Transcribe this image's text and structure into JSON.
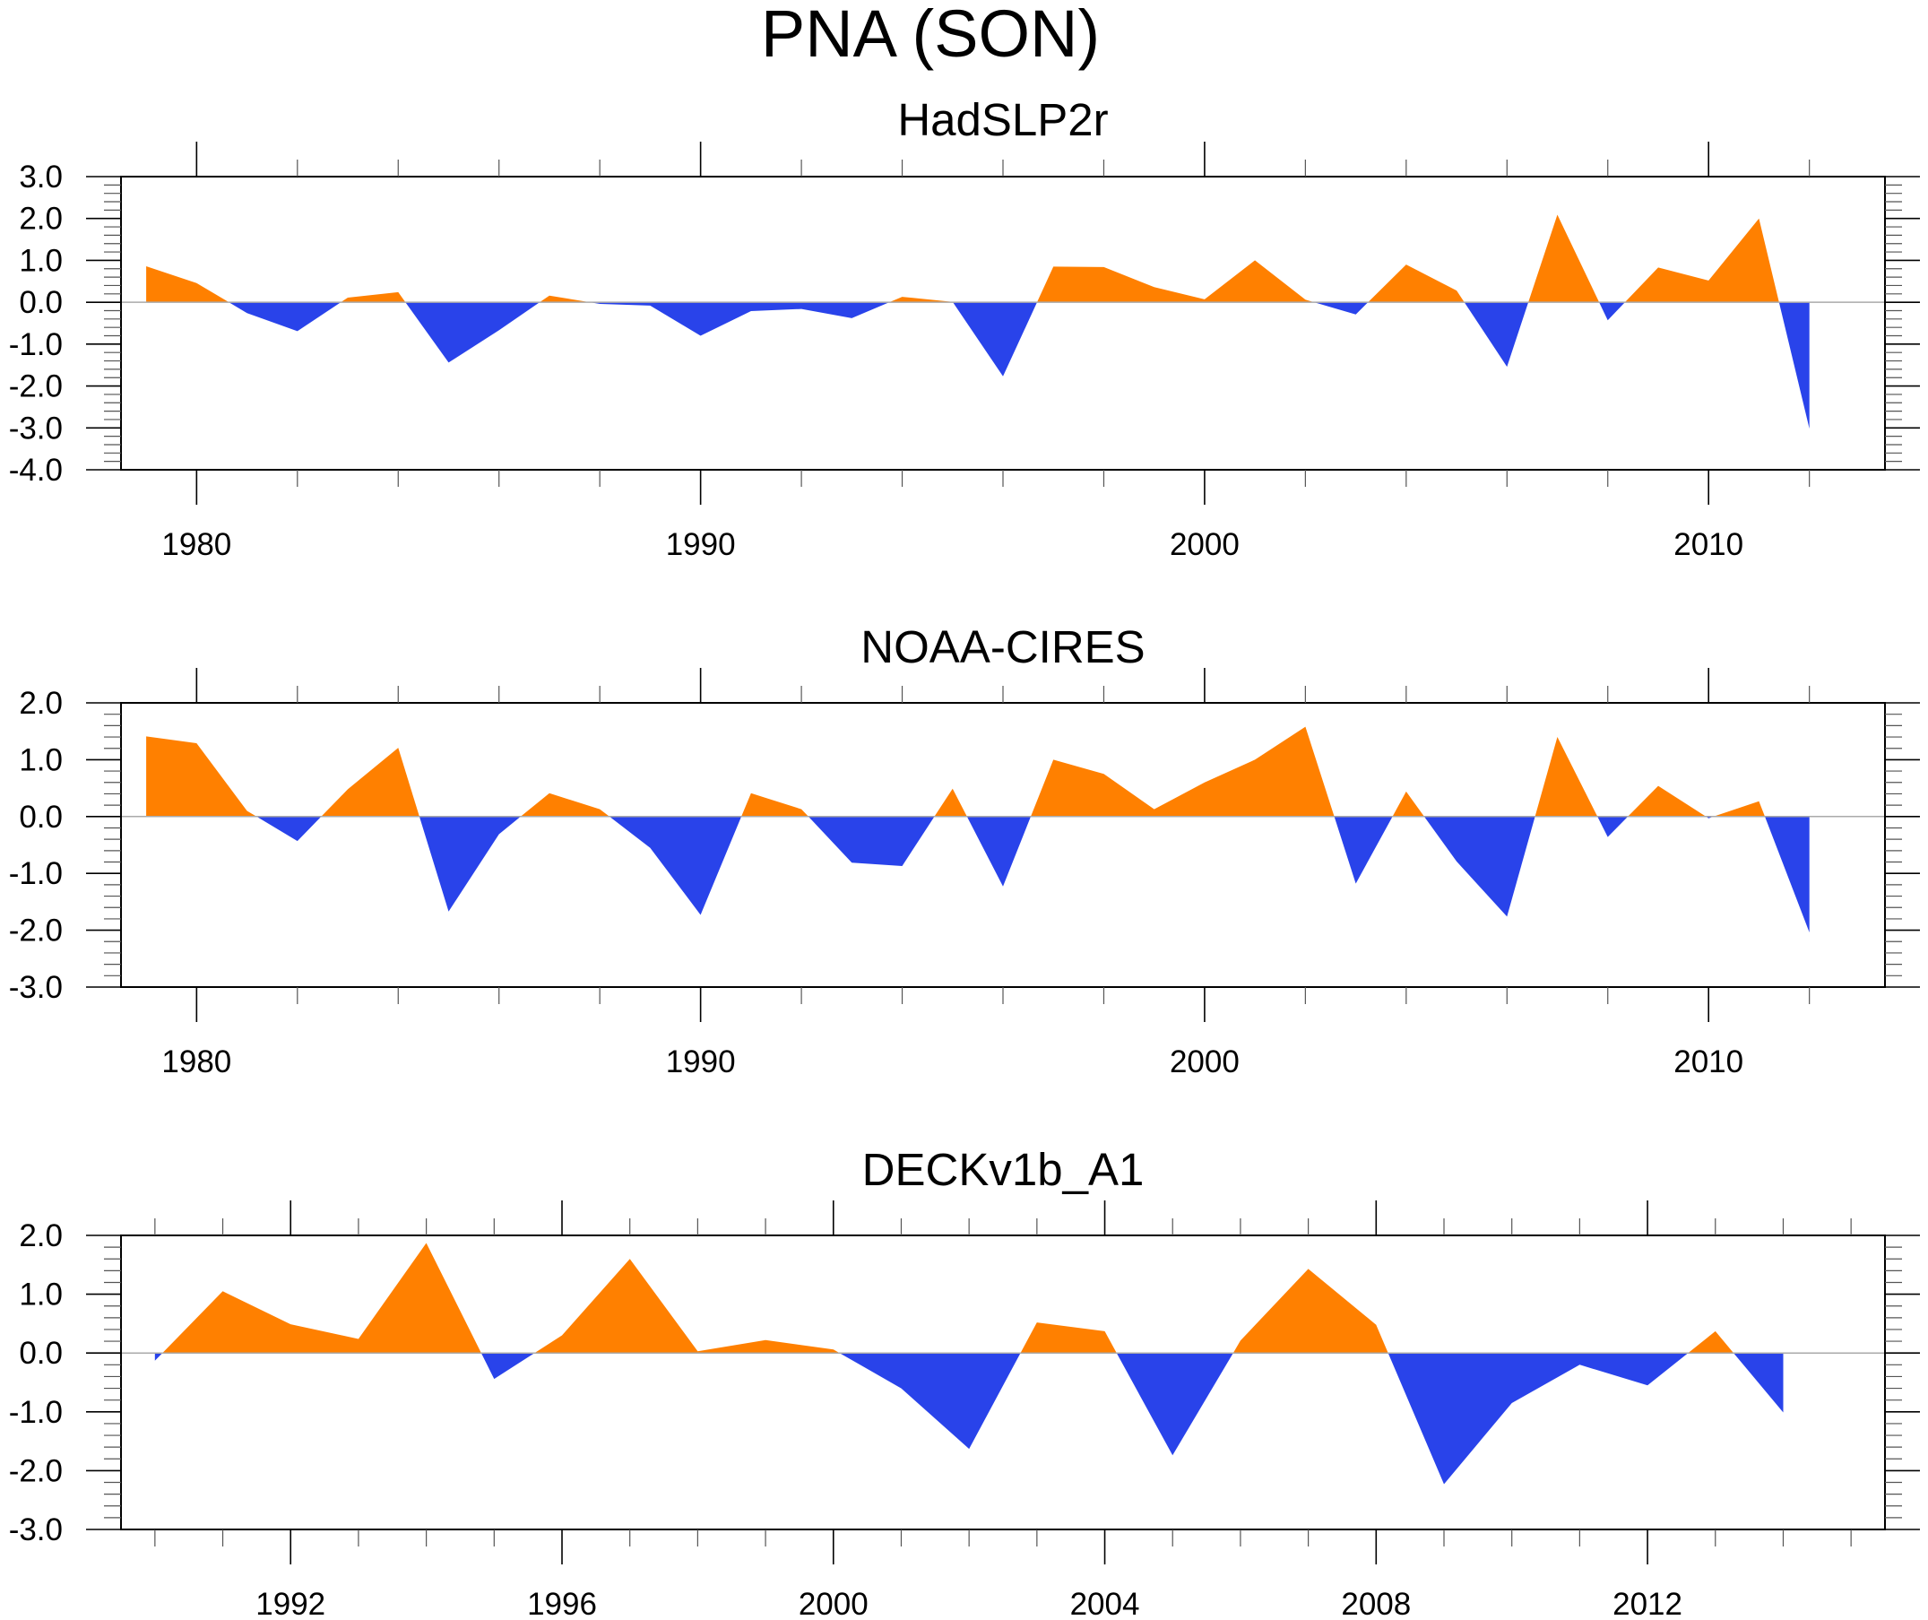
{
  "colors": {
    "positive": "#ff8000",
    "negative": "#2943ea",
    "zero_line": "#aaaaaa"
  },
  "chart_data": {
    "type": "area",
    "title": "PNA (SON)",
    "panels": [
      {
        "title": "HadSLP2r",
        "xlabel": "",
        "ylabel": "",
        "xlim": [
          1978.5,
          2013.5
        ],
        "ylim": [
          -4.0,
          3.0
        ],
        "yticks": [
          3.0,
          2.0,
          1.0,
          0.0,
          -1.0,
          -2.0,
          -3.0,
          -4.0
        ],
        "ytick_labels": [
          "3.0",
          "2.0",
          "1.0",
          "0.0",
          "-1.0",
          "-2.0",
          "-3.0",
          "-4.0"
        ],
        "y_minor_step": 0.2,
        "xticks_major": [
          1980,
          1990,
          2000,
          2010
        ],
        "xtick_labels": [
          "1980",
          "1990",
          "2000",
          "2010"
        ],
        "xticks_minor": [
          1982,
          1984,
          1986,
          1988,
          1992,
          1994,
          1996,
          1998,
          2002,
          2004,
          2006,
          2008,
          2012
        ],
        "x": [
          1979,
          1980,
          1981,
          1982,
          1983,
          1984,
          1985,
          1986,
          1987,
          1988,
          1989,
          1990,
          1991,
          1992,
          1993,
          1994,
          1995,
          1996,
          1997,
          1998,
          1999,
          2000,
          2001,
          2002,
          2003,
          2004,
          2005,
          2006,
          2007,
          2008,
          2009,
          2010,
          2011,
          2012
        ],
        "values": [
          0.86,
          0.46,
          -0.26,
          -0.69,
          0.11,
          0.24,
          -1.44,
          -0.67,
          0.16,
          -0.04,
          -0.08,
          -0.8,
          -0.21,
          -0.16,
          -0.38,
          0.13,
          0.01,
          -1.77,
          0.85,
          0.84,
          0.36,
          0.07,
          1.0,
          0.06,
          -0.29,
          0.9,
          0.28,
          -1.54,
          2.09,
          -0.43,
          0.83,
          0.52,
          2.0,
          -3.02
        ]
      },
      {
        "title": "NOAA-CIRES",
        "xlabel": "",
        "ylabel": "",
        "xlim": [
          1978.5,
          2013.5
        ],
        "ylim": [
          -3.0,
          2.0
        ],
        "yticks": [
          2.0,
          1.0,
          0.0,
          -1.0,
          -2.0,
          -3.0
        ],
        "ytick_labels": [
          "2.0",
          "1.0",
          "0.0",
          "-1.0",
          "-2.0",
          "-3.0"
        ],
        "y_minor_step": 0.2,
        "xticks_major": [
          1980,
          1990,
          2000,
          2010
        ],
        "xtick_labels": [
          "1980",
          "1990",
          "2000",
          "2010"
        ],
        "xticks_minor": [
          1982,
          1984,
          1986,
          1988,
          1992,
          1994,
          1996,
          1998,
          2002,
          2004,
          2006,
          2008,
          2012
        ],
        "x": [
          1979,
          1980,
          1981,
          1982,
          1983,
          1984,
          1985,
          1986,
          1987,
          1988,
          1989,
          1990,
          1991,
          1992,
          1993,
          1994,
          1995,
          1996,
          1997,
          1998,
          1999,
          2000,
          2001,
          2002,
          2003,
          2004,
          2005,
          2006,
          2007,
          2008,
          2009,
          2010,
          2011,
          2012
        ],
        "values": [
          1.41,
          1.29,
          0.1,
          -0.43,
          0.48,
          1.21,
          -1.67,
          -0.31,
          0.41,
          0.13,
          -0.55,
          -1.73,
          0.41,
          0.13,
          -0.81,
          -0.87,
          0.49,
          -1.23,
          1.0,
          0.75,
          0.13,
          0.6,
          1.0,
          1.58,
          -1.18,
          0.44,
          -0.79,
          -1.76,
          1.4,
          -0.36,
          0.54,
          -0.03,
          0.27,
          -2.04
        ]
      },
      {
        "title": "DECKv1b_A1",
        "xlabel": "",
        "ylabel": "",
        "xlim": [
          1989.5,
          2015.5
        ],
        "ylim": [
          -3.0,
          2.0
        ],
        "yticks": [
          2.0,
          1.0,
          0.0,
          -1.0,
          -2.0,
          -3.0
        ],
        "ytick_labels": [
          "2.0",
          "1.0",
          "0.0",
          "-1.0",
          "-2.0",
          "-3.0"
        ],
        "y_minor_step": 0.2,
        "xticks_major": [
          1992,
          1996,
          2000,
          2004,
          2008,
          2012
        ],
        "xtick_labels": [
          "1992",
          "1996",
          "2000",
          "2004",
          "2008",
          "2012"
        ],
        "xticks_minor": [
          1990,
          1991,
          1993,
          1994,
          1995,
          1997,
          1998,
          1999,
          2001,
          2002,
          2003,
          2005,
          2006,
          2007,
          2009,
          2010,
          2011,
          2013,
          2014,
          2015
        ],
        "x": [
          1990,
          1991,
          1992,
          1993,
          1994,
          1995,
          1996,
          1997,
          1998,
          1999,
          2000,
          2001,
          2002,
          2003,
          2004,
          2005,
          2006,
          2007,
          2008,
          2009,
          2010,
          2011,
          2012,
          2013,
          2014
        ],
        "values": [
          -0.13,
          1.05,
          0.49,
          0.24,
          1.87,
          -0.44,
          0.3,
          1.6,
          0.03,
          0.22,
          0.06,
          -0.6,
          -1.63,
          0.52,
          0.37,
          -1.74,
          0.21,
          1.43,
          0.48,
          -2.23,
          -0.85,
          -0.2,
          -0.55,
          0.37,
          -1.01
        ]
      }
    ],
    "grid": false,
    "legend": "none"
  }
}
